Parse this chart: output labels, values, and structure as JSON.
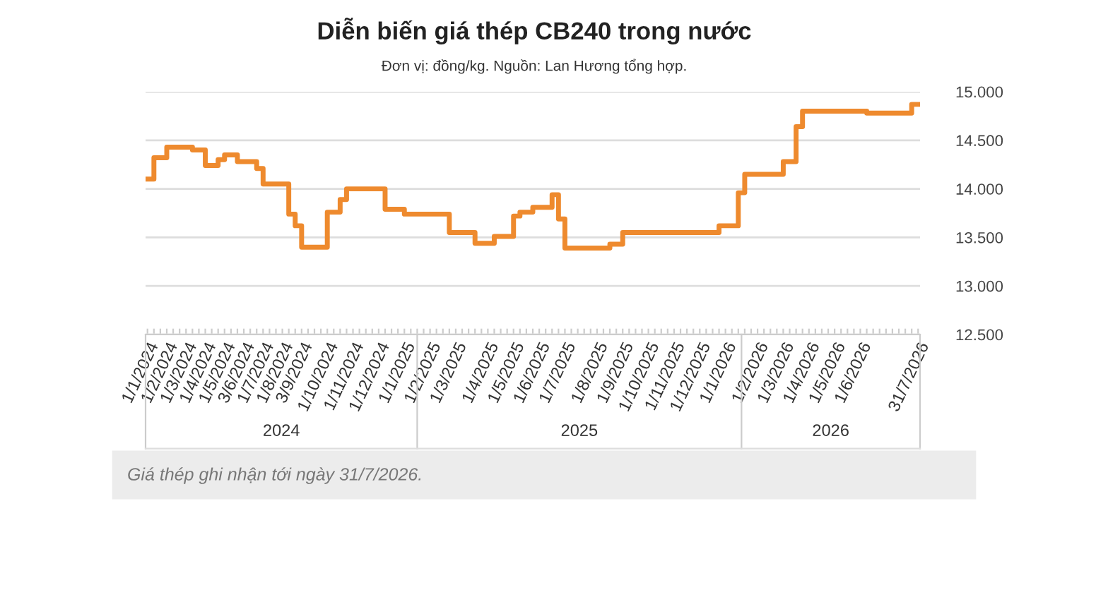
{
  "chart_data": {
    "type": "step",
    "title": "Diễn biến giá thép CB240 trong nước",
    "subtitle": "Đơn vị: đồng/kg. Nguồn: Lan Hương tổng hợp.",
    "categories": [
      "1/1/2024",
      null,
      null,
      "1/2/2024",
      null,
      null,
      "1/3/2024",
      null,
      null,
      "1/4/2024",
      null,
      null,
      "1/5/2024",
      null,
      null,
      "3/6/2024",
      null,
      null,
      "1/7/2024",
      null,
      null,
      "1/8/2024",
      null,
      null,
      "3/9/2024",
      null,
      null,
      null,
      "1/10/2024",
      null,
      null,
      null,
      "1/11/2024",
      null,
      null,
      null,
      "1/12/2024",
      null,
      null,
      null,
      "1/1/2025",
      null,
      null,
      null,
      "1/2/2025",
      null,
      null,
      null,
      "1/3/2025",
      null,
      null,
      null,
      null,
      "1/4/2025",
      null,
      null,
      null,
      "1/5/2025",
      null,
      null,
      null,
      "1/6/2025",
      null,
      null,
      null,
      "1/7/2025",
      null,
      null,
      null,
      null,
      "1/8/2025",
      null,
      null,
      null,
      "1/9/2025",
      null,
      null,
      null,
      "1/10/2025",
      null,
      null,
      null,
      "1/11/2025",
      null,
      null,
      null,
      "1/12/2025",
      null,
      null,
      null,
      "1/1/2026",
      null,
      null,
      null,
      null,
      "1/2/2026",
      null,
      null,
      null,
      "1/3/2026",
      null,
      null,
      null,
      "1/4/2026",
      null,
      null,
      null,
      "1/5/2026",
      null,
      null,
      null,
      "1/6/2026",
      null,
      null,
      null,
      null,
      null,
      null,
      null,
      null,
      "31/7/2026"
    ],
    "series": [
      {
        "color": "#ee8a2e",
        "values": [
          14100,
          14320,
          14320,
          14430,
          14430,
          14430,
          14430,
          14400,
          14400,
          14240,
          14240,
          14300,
          14350,
          14350,
          14280,
          14280,
          14280,
          14210,
          14050,
          14050,
          14050,
          14050,
          13740,
          13620,
          13400,
          13400,
          13400,
          13400,
          13760,
          13760,
          13890,
          14000,
          14000,
          14000,
          14000,
          14000,
          14000,
          13790,
          13790,
          13790,
          13740,
          13740,
          13740,
          13740,
          13740,
          13740,
          13740,
          13550,
          13550,
          13550,
          13550,
          13440,
          13440,
          13440,
          13510,
          13510,
          13510,
          13720,
          13760,
          13760,
          13810,
          13810,
          13810,
          13940,
          13690,
          13390,
          13390,
          13390,
          13390,
          13390,
          13390,
          13390,
          13430,
          13430,
          13550,
          13550,
          13550,
          13550,
          13550,
          13550,
          13550,
          13550,
          13550,
          13550,
          13550,
          13550,
          13550,
          13550,
          13550,
          13620,
          13620,
          13620,
          13960,
          14150,
          14150,
          14150,
          14150,
          14150,
          14150,
          14280,
          14280,
          14640,
          14800,
          14800,
          14800,
          14800,
          14800,
          14800,
          14800,
          14800,
          14800,
          14800,
          14780,
          14780,
          14780,
          14780,
          14780,
          14780,
          14780,
          14870,
          14870
        ]
      }
    ],
    "ylim": [
      12500,
      15000
    ],
    "yticks": [
      {
        "value": 12500,
        "label": "12.500"
      },
      {
        "value": 13000,
        "label": "13.000"
      },
      {
        "value": 13500,
        "label": "13.500"
      },
      {
        "value": 14000,
        "label": "14.000"
      },
      {
        "value": 14500,
        "label": "14.500"
      },
      {
        "value": 15000,
        "label": "15.000"
      }
    ],
    "grid": "y",
    "annotations": [
      "2024",
      "2025",
      "2026",
      "Giá thép ghi nhận tới ngày 31/7/2026."
    ]
  }
}
